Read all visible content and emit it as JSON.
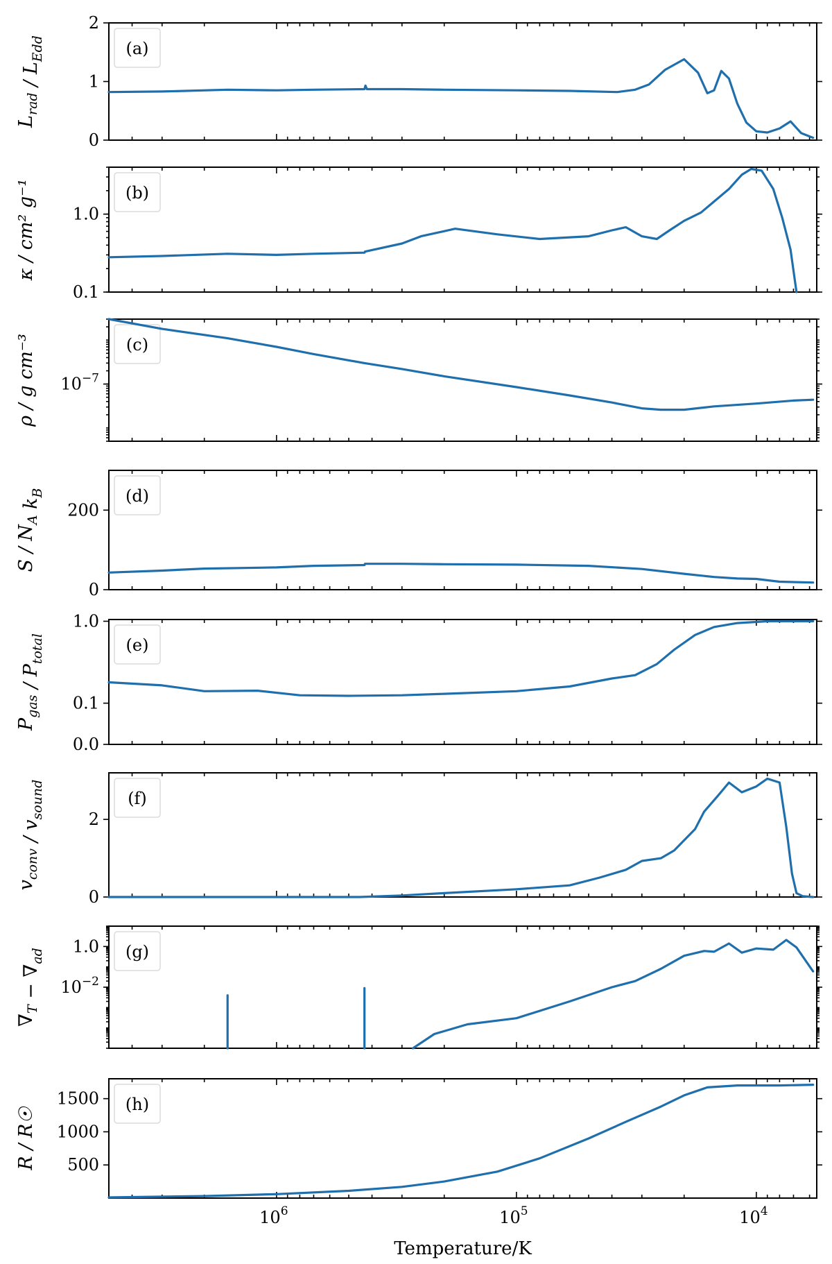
{
  "chart_data": {
    "type": "line",
    "xlabel": "Temperature/K",
    "x_scale": "log",
    "x_inverted": true,
    "xlim": [
      5000000,
      5600
    ],
    "xticks": [
      {
        "value": 1000000,
        "base": "10",
        "exp": "6"
      },
      {
        "value": 100000,
        "base": "10",
        "exp": "5"
      },
      {
        "value": 10000,
        "base": "10",
        "exp": "4"
      }
    ],
    "panels": [
      {
        "tag": "(a)",
        "ylabel": "L_rad / L_Edd",
        "yscale": "linear",
        "ylim": [
          0,
          2
        ],
        "yticks": [
          {
            "value": 0,
            "label": "0"
          },
          {
            "value": 1,
            "label": "1"
          },
          {
            "value": 2,
            "label": "2"
          }
        ],
        "x": [
          5000000,
          3000000,
          1600000,
          1000000,
          700000,
          430000,
          426000,
          420000,
          300000,
          200000,
          100000,
          60000,
          38000,
          32000,
          28000,
          24000,
          20000,
          17500,
          16000,
          15000,
          14000,
          13000,
          12000,
          11000,
          10000,
          9000,
          8000,
          7200,
          6500,
          5800
        ],
        "y": [
          0.82,
          0.83,
          0.86,
          0.85,
          0.86,
          0.87,
          0.93,
          0.87,
          0.87,
          0.86,
          0.85,
          0.84,
          0.82,
          0.86,
          0.95,
          1.2,
          1.38,
          1.15,
          0.8,
          0.85,
          1.18,
          1.05,
          0.62,
          0.3,
          0.15,
          0.13,
          0.2,
          0.32,
          0.12,
          0.04
        ]
      },
      {
        "tag": "(b)",
        "ylabel": "κ / cm² g⁻¹",
        "yscale": "log",
        "ylim": [
          0.1,
          4
        ],
        "yticks": [
          {
            "value": 0.1,
            "label": "0.1"
          },
          {
            "value": 1,
            "label": "1.0"
          }
        ],
        "x": [
          5000000,
          3000000,
          1600000,
          1000000,
          700000,
          430000,
          428000,
          300000,
          250000,
          180000,
          120000,
          80000,
          50000,
          40000,
          35000,
          30000,
          26000,
          23000,
          20000,
          17000,
          15000,
          13000,
          11500,
          10500,
          9500,
          8500,
          7800,
          7200,
          6800
        ],
        "y": [
          0.28,
          0.29,
          0.31,
          0.3,
          0.31,
          0.32,
          0.33,
          0.42,
          0.52,
          0.65,
          0.55,
          0.48,
          0.52,
          0.62,
          0.68,
          0.52,
          0.48,
          0.62,
          0.82,
          1.05,
          1.45,
          2.1,
          3.2,
          3.8,
          3.6,
          2.1,
          0.9,
          0.35,
          0.1
        ]
      },
      {
        "tag": "(c)",
        "ylabel": "ρ / g cm⁻³",
        "yscale": "log",
        "ylim": [
          5e-09,
          3e-06
        ],
        "yticks": [
          {
            "value": 1e-07,
            "label": "10",
            "exp": "−7"
          }
        ],
        "x": [
          5000000,
          3000000,
          1600000,
          1000000,
          700000,
          430000,
          300000,
          200000,
          100000,
          60000,
          40000,
          30000,
          25000,
          20000,
          15000,
          10000,
          7000,
          5800
        ],
        "y": [
          3e-06,
          1.8e-06,
          1.1e-06,
          7e-07,
          4.8e-07,
          3e-07,
          2.2e-07,
          1.5e-07,
          8.5e-08,
          5.5e-08,
          3.8e-08,
          2.8e-08,
          2.6e-08,
          2.6e-08,
          3.1e-08,
          3.6e-08,
          4.2e-08,
          4.4e-08
        ]
      },
      {
        "tag": "(d)",
        "ylabel": "S / N_A k_B",
        "yscale": "linear",
        "ylim": [
          0,
          300
        ],
        "yticks": [
          {
            "value": 0,
            "label": "0"
          },
          {
            "value": 200,
            "label": "200"
          }
        ],
        "x": [
          5000000,
          3000000,
          2000000,
          1000000,
          700000,
          430000,
          428000,
          300000,
          200000,
          100000,
          50000,
          30000,
          20000,
          15000,
          12000,
          10000,
          8000,
          5800
        ],
        "y": [
          43,
          48,
          53,
          56,
          60,
          62,
          65,
          65,
          64,
          63,
          60,
          52,
          40,
          32,
          28,
          27,
          20,
          18
        ]
      },
      {
        "tag": "(e)",
        "ylabel": "P_gas / P_total",
        "yscale": "symlog",
        "ylim": [
          0,
          1.05
        ],
        "yticks": [
          {
            "value": 0,
            "label": "0.0"
          },
          {
            "value": 0.1,
            "label": "0.1"
          },
          {
            "value": 1,
            "label": "1.0"
          }
        ],
        "x": [
          5000000,
          3000000,
          2000000,
          1200000,
          800000,
          500000,
          300000,
          200000,
          100000,
          60000,
          40000,
          32000,
          26000,
          22000,
          18000,
          15000,
          12000,
          9000,
          7000,
          5800
        ],
        "y": [
          0.18,
          0.165,
          0.14,
          0.142,
          0.125,
          0.123,
          0.125,
          0.13,
          0.14,
          0.16,
          0.2,
          0.22,
          0.3,
          0.45,
          0.68,
          0.85,
          0.95,
          1.0,
          1.0,
          1.0
        ]
      },
      {
        "tag": "(f)",
        "ylabel": "v_conv / v_sound",
        "yscale": "linear",
        "ylim": [
          0,
          3.2
        ],
        "yticks": [
          {
            "value": 0,
            "label": "0"
          },
          {
            "value": 2,
            "label": "2"
          }
        ],
        "x": [
          5000000,
          1000000,
          450000,
          300000,
          200000,
          100000,
          60000,
          45000,
          35000,
          30000,
          25000,
          22000,
          18000,
          16500,
          14500,
          13000,
          11500,
          10000,
          9000,
          8000,
          7500,
          7100,
          6800,
          6400,
          5800
        ],
        "y": [
          0,
          0,
          0,
          0.04,
          0.1,
          0.2,
          0.3,
          0.5,
          0.7,
          0.93,
          1.0,
          1.2,
          1.75,
          2.2,
          2.6,
          2.95,
          2.7,
          2.85,
          3.05,
          2.95,
          1.8,
          0.6,
          0.1,
          0.02,
          0
        ]
      },
      {
        "tag": "(g)",
        "ylabel": "∇_T − ∇_ad",
        "yscale": "log",
        "ylim": [
          1e-05,
          10
        ],
        "yticks": [
          {
            "value": 0.01,
            "label": "10",
            "exp": "−2"
          },
          {
            "value": 1,
            "label": "1.0"
          }
        ],
        "spikes": [
          {
            "x": 1600000,
            "top": 0.004
          },
          {
            "x": 430000,
            "top": 0.009
          }
        ],
        "x": [
          270000,
          220000,
          160000,
          100000,
          60000,
          40000,
          32000,
          25000,
          20000,
          16500,
          15000,
          13000,
          11500,
          10000,
          8500,
          7500,
          6800,
          5800
        ],
        "y": [
          1e-05,
          5e-05,
          0.00015,
          0.0003,
          0.002,
          0.01,
          0.02,
          0.08,
          0.35,
          0.6,
          0.55,
          1.4,
          0.5,
          0.8,
          0.7,
          2.1,
          0.9,
          0.06
        ]
      },
      {
        "tag": "(h)",
        "ylabel": "R / R☉",
        "yscale": "linear",
        "ylim": [
          0,
          1800
        ],
        "yticks": [
          {
            "value": 500,
            "label": "500"
          },
          {
            "value": 1000,
            "label": "1000"
          },
          {
            "value": 1500,
            "label": "1500"
          }
        ],
        "x": [
          5000000,
          2000000,
          1000000,
          500000,
          300000,
          200000,
          120000,
          80000,
          50000,
          35000,
          25000,
          20000,
          16000,
          12000,
          8000,
          5800
        ],
        "y": [
          10,
          30,
          60,
          110,
          170,
          250,
          400,
          600,
          900,
          1150,
          1380,
          1550,
          1670,
          1700,
          1700,
          1710
        ]
      }
    ]
  }
}
